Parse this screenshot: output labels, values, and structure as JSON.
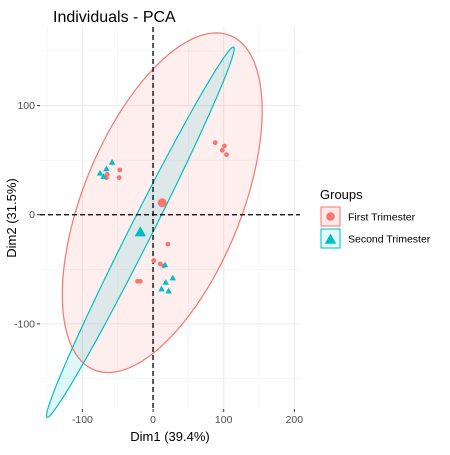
{
  "chart_data": {
    "type": "scatter",
    "title": "Individuals - PCA",
    "xlabel": "Dim1 (39.4%)",
    "ylabel": "Dim2 (31.5%)",
    "xlim": [
      -160,
      208
    ],
    "ylim": [
      -178,
      172
    ],
    "x_ticks": [
      -100,
      0,
      100,
      200
    ],
    "y_ticks": [
      -100,
      0,
      100
    ],
    "x_tick_labels": [
      "-100",
      "0",
      "100",
      "200"
    ],
    "y_tick_labels": [
      "-100",
      "0",
      "100"
    ],
    "grid": true,
    "legend_position": "right",
    "legend_title": "Groups",
    "reference_lines": {
      "x": 0,
      "y": 0,
      "style": "dashed"
    },
    "series": [
      {
        "name": "First Trimester",
        "marker": "circle",
        "color": "#F8766D",
        "fill": "#FDE9E7",
        "points": [
          {
            "x": 88,
            "y": 66
          },
          {
            "x": 98,
            "y": 59
          },
          {
            "x": 101,
            "y": 63
          },
          {
            "x": 104,
            "y": 55
          },
          {
            "x": -66,
            "y": 34
          },
          {
            "x": -65,
            "y": 37
          },
          {
            "x": -47,
            "y": 41
          },
          {
            "x": -48,
            "y": 34
          },
          {
            "x": 21,
            "y": -27
          },
          {
            "x": 1,
            "y": -42
          },
          {
            "x": 15,
            "y": -47
          },
          {
            "x": -18,
            "y": -61
          },
          {
            "x": -22,
            "y": -61
          },
          {
            "x": 10,
            "y": -45
          }
        ],
        "centroid": {
          "x": 13,
          "y": 11
        },
        "ellipse": {
          "cx": 13,
          "cy": 11,
          "a": 185,
          "b": 100,
          "angle_deg": 50
        }
      },
      {
        "name": "Second Trimester",
        "marker": "triangle",
        "color": "#00BFC4",
        "fill": "#E5F8F8",
        "points": [
          {
            "x": -75,
            "y": 38
          },
          {
            "x": -70,
            "y": 35
          },
          {
            "x": -66,
            "y": 42
          },
          {
            "x": -58,
            "y": 48
          },
          {
            "x": 17,
            "y": -46
          },
          {
            "x": 28,
            "y": -58
          },
          {
            "x": 18,
            "y": -62
          },
          {
            "x": 22,
            "y": -70
          },
          {
            "x": 12,
            "y": -68
          }
        ],
        "centroid": {
          "x": -18,
          "y": -16
        },
        "ellipse": {
          "cx": -18,
          "cy": -16,
          "a": 215,
          "b": 14,
          "angle_deg": 52
        }
      }
    ]
  }
}
